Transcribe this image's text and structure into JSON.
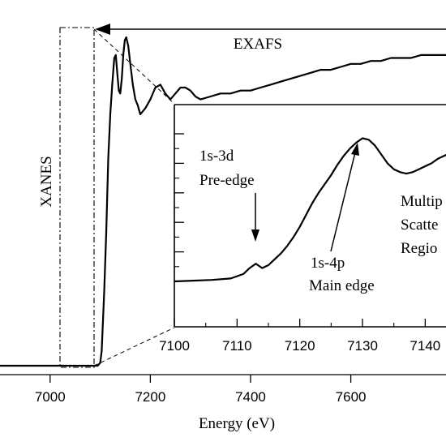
{
  "chart_data": [
    {
      "type": "line",
      "xlabel": "Energy (eV)",
      "xlim": [
        6900,
        7790
      ],
      "x_ticks": [
        7000,
        7200,
        7400,
        7600
      ],
      "x_tick_labels": [
        "7000",
        "7200",
        "7400",
        "7600"
      ],
      "series": [
        {
          "x": [
            6900,
            7000,
            7080,
            7095,
            7100,
            7103,
            7108,
            7112,
            7116,
            7120,
            7124,
            7128,
            7131,
            7134,
            7137,
            7140,
            7143,
            7146,
            7149,
            7152,
            7156,
            7160,
            7165,
            7170,
            7175,
            7180,
            7190,
            7200,
            7210,
            7220,
            7230,
            7240,
            7250,
            7260,
            7270,
            7280,
            7290,
            7300,
            7320,
            7340,
            7360,
            7380,
            7400,
            7420,
            7440,
            7460,
            7480,
            7500,
            7520,
            7540,
            7560,
            7580,
            7600,
            7620,
            7640,
            7660,
            7680,
            7700,
            7720,
            7740,
            7760,
            7780,
            7790
          ],
          "y": [
            0.0,
            0.0,
            0.0,
            0.0,
            0.01,
            0.05,
            0.25,
            0.45,
            0.7,
            0.85,
            0.95,
            1.04,
            1.05,
            0.99,
            0.93,
            0.92,
            0.97,
            1.05,
            1.1,
            1.11,
            1.08,
            1.02,
            0.95,
            0.9,
            0.88,
            0.85,
            0.87,
            0.9,
            0.94,
            0.95,
            0.92,
            0.9,
            0.92,
            0.94,
            0.94,
            0.93,
            0.91,
            0.9,
            0.91,
            0.92,
            0.92,
            0.93,
            0.93,
            0.94,
            0.95,
            0.96,
            0.97,
            0.98,
            0.99,
            1.0,
            1.0,
            1.01,
            1.02,
            1.02,
            1.03,
            1.03,
            1.04,
            1.04,
            1.04,
            1.05,
            1.05,
            1.05,
            1.05
          ]
        }
      ],
      "annotations": {
        "exafs": "EXAFS",
        "xanes": "XANES"
      }
    },
    {
      "type": "line",
      "xlim": [
        7100,
        7145
      ],
      "x_ticks": [
        7100,
        7110,
        7120,
        7130,
        7140
      ],
      "x_tick_labels": [
        "7100",
        "7110",
        "7120",
        "7130",
        "7140"
      ],
      "y_ticks": [
        0.2,
        0.4,
        0.6,
        0.8,
        1.0
      ],
      "series": [
        {
          "x": [
            7100,
            7103,
            7106,
            7109,
            7111,
            7112,
            7113,
            7114,
            7115,
            7116,
            7117,
            7118,
            7119,
            7120,
            7121,
            7122,
            7123,
            7124,
            7125,
            7126,
            7127,
            7128,
            7129,
            7130,
            7131,
            7132,
            7133,
            7134,
            7135,
            7136,
            7137,
            7138,
            7139,
            7140,
            7141,
            7142,
            7143,
            7144,
            7145
          ],
          "y": [
            0.0,
            0.005,
            0.01,
            0.02,
            0.05,
            0.09,
            0.12,
            0.09,
            0.11,
            0.15,
            0.19,
            0.24,
            0.3,
            0.37,
            0.45,
            0.53,
            0.6,
            0.66,
            0.72,
            0.79,
            0.85,
            0.9,
            0.94,
            0.97,
            0.96,
            0.92,
            0.86,
            0.8,
            0.76,
            0.74,
            0.73,
            0.74,
            0.76,
            0.78,
            0.8,
            0.83,
            0.85,
            0.87,
            0.88
          ]
        }
      ],
      "annotations": {
        "pre_edge_line1": "1s-3d",
        "pre_edge_line2": "Pre-edge",
        "main_edge_line1": "1s-4p",
        "main_edge_line2": "Main edge",
        "ms_line1": "Multip",
        "ms_line2": "Scatte",
        "ms_line3": "Regio"
      }
    }
  ]
}
